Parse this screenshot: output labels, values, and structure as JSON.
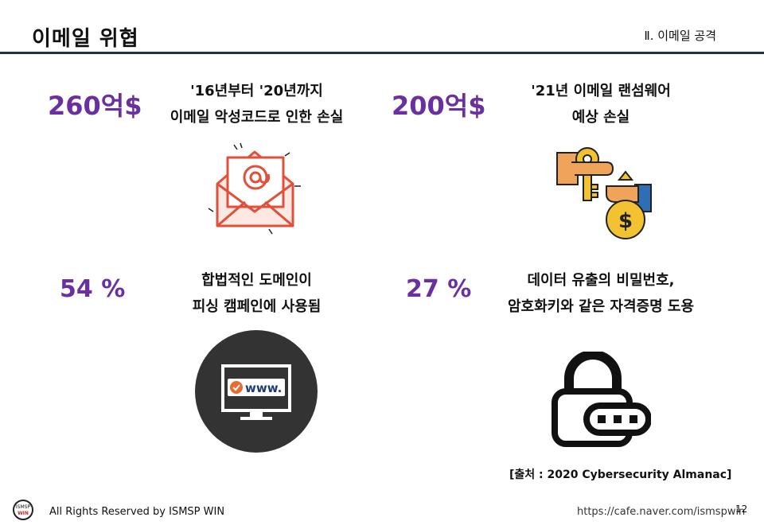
{
  "header": {
    "title": "이메일 위협",
    "section": "Ⅱ. 이메일 공격"
  },
  "stats": [
    {
      "value": "260억$",
      "desc_line1": "'16년부터 '20년까지",
      "desc_line2": "이메일 악성코드로 인한 손실",
      "icon": "email-at-icon"
    },
    {
      "value": "200억$",
      "desc_line1": "'21년 이메일 랜섬웨어",
      "desc_line2": "예상 손실",
      "icon": "key-money-bag-icon"
    },
    {
      "value": "54 %",
      "desc_line1": "합법적인 도메인이",
      "desc_line2": "피싱 캠페인에 사용됨",
      "icon": "www-monitor-icon"
    },
    {
      "value": "27 %",
      "desc_line1": "데이터 유출의 비밀번호,",
      "desc_line2": "암호화키와 같은 자격증명 도용",
      "icon": "padlock-password-icon"
    }
  ],
  "icon_text": {
    "www": "www."
  },
  "source": "[출처 : 2020 Cybersecurity Almanac]",
  "footer": {
    "logo_top": "ISMSP",
    "logo_bottom": "WIN",
    "copyright": "All Rights Reserved by ISMSP WIN",
    "url": "https://cafe.naver.com/ismspwin",
    "page": "12"
  },
  "colors": {
    "accent": "#6a2fa0",
    "rule": "#1f2d4f",
    "email": "#e0503a"
  }
}
